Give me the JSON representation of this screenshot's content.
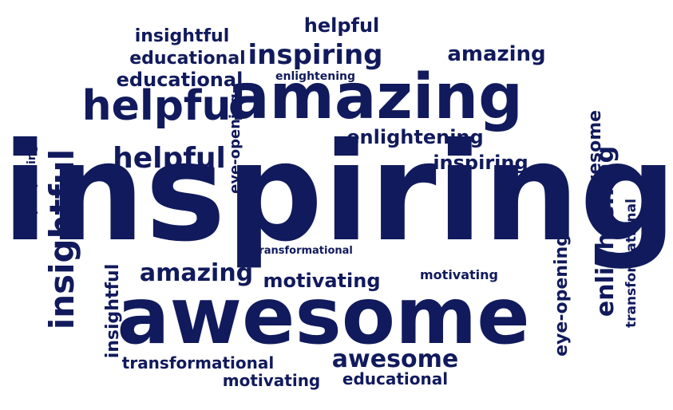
{
  "word_cloud": {
    "ink_color": "#111a5c",
    "background_color": "#ffffff",
    "words": [
      "inspiring",
      "awesome",
      "amazing",
      "helpful",
      "insightful",
      "enlightening",
      "educational",
      "transformational",
      "motivating",
      "eye-opening",
      "helpful",
      "amazing",
      "inspiring",
      "educational",
      "enlightening",
      "insightful",
      "awesome",
      "motivating",
      "transformational",
      "eye-opening",
      "inspiring",
      "amazing",
      "helpful",
      "insightful",
      "educational",
      "enlightening",
      "motivating",
      "awesome",
      "transformational",
      "eye-opening"
    ]
  }
}
